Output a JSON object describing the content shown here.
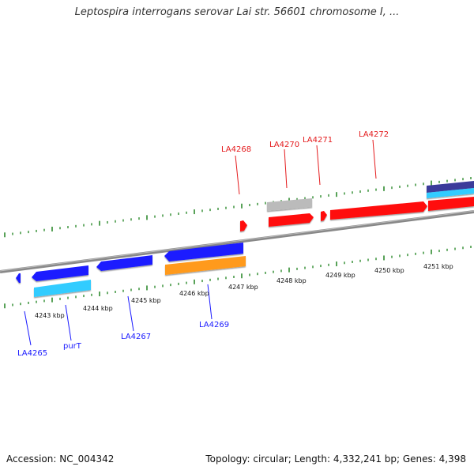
{
  "title": "Leptospira interrogans serovar Lai str. 56601 chromosome I, ...",
  "footer": {
    "accession": "Accession: NC_004342",
    "summary": "Topology: circular; Length: 4,332,241 bp; Genes: 4,398"
  },
  "colors": {
    "cds_forward": "#ff1010",
    "cds_reverse": "#1a1aff",
    "rna_gray": "#bbbbbb",
    "orange_feature": "#ff9a1a",
    "cyan_feature": "#33ccff",
    "navy_feature": "#3a3a9a",
    "tick_green": "#2e8b2e",
    "backbone": "#888888",
    "label_top": "#e41a1c",
    "label_bottom": "#1a1aff"
  },
  "scale_labels": [
    "4243 kbp",
    "4244 kbp",
    "4245 kbp",
    "4246 kbp",
    "4247 kbp",
    "4248 kbp",
    "4249 kbp",
    "4250 kbp",
    "4251 kbp"
  ],
  "gene_labels_top": [
    "LA4268",
    "LA4270",
    "LA4271",
    "LA4272"
  ],
  "gene_labels_bottom": [
    "LA4265",
    "purT",
    "LA4267",
    "LA4269"
  ]
}
